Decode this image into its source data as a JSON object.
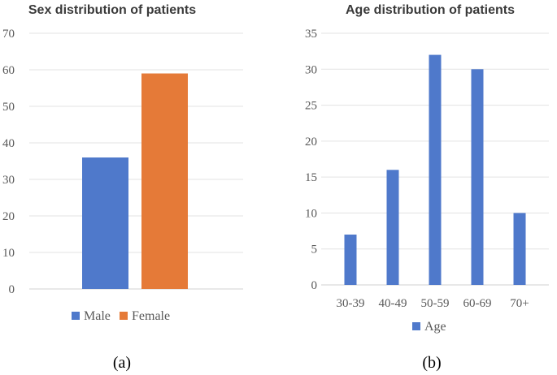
{
  "chart_data": [
    {
      "type": "bar",
      "title": "Sex distribution of patients",
      "categories": [
        ""
      ],
      "series": [
        {
          "name": "Male",
          "values": [
            36
          ],
          "color": "#4f79cb"
        },
        {
          "name": "Female",
          "values": [
            59
          ],
          "color": "#e57a38"
        }
      ],
      "ylim": [
        0,
        70
      ],
      "yticks": [
        0,
        10,
        20,
        30,
        40,
        50,
        60,
        70
      ],
      "xlabel": "",
      "ylabel": "",
      "grid": true,
      "legend": "bottom",
      "panel_label": "(a)"
    },
    {
      "type": "bar",
      "title": "Age distribution of patients",
      "categories": [
        "30-39",
        "40-49",
        "50-59",
        "60-69",
        "70+"
      ],
      "series": [
        {
          "name": "Age",
          "values": [
            7,
            16,
            32,
            30,
            10
          ],
          "color": "#4f79cb"
        }
      ],
      "ylim": [
        0,
        35
      ],
      "yticks": [
        0,
        5,
        10,
        15,
        20,
        25,
        30,
        35
      ],
      "xlabel": "",
      "ylabel": "",
      "grid": true,
      "legend": "bottom",
      "panel_label": "(b)"
    }
  ]
}
